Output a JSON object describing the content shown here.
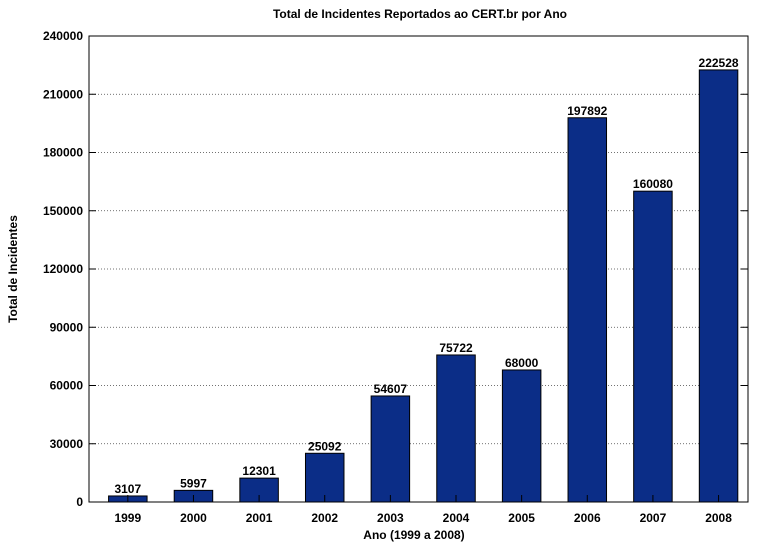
{
  "chart_data": {
    "type": "bar",
    "title": "Total de Incidentes Reportados ao CERT.br por Ano",
    "xlabel": "Ano (1999 a 2008)",
    "ylabel": "Total de Incidentes",
    "categories": [
      "1999",
      "2000",
      "2001",
      "2002",
      "2003",
      "2004",
      "2005",
      "2006",
      "2007",
      "2008"
    ],
    "values": [
      3107,
      5997,
      12301,
      25092,
      54607,
      75722,
      68000,
      197892,
      160080,
      222528
    ],
    "data_labels": [
      "3107",
      "5997",
      "12301",
      "25092",
      "54607",
      "75722",
      "68000",
      "197892",
      "160080",
      "222528"
    ],
    "ylim": [
      0,
      240000
    ],
    "yticks": [
      0,
      30000,
      60000,
      90000,
      120000,
      150000,
      180000,
      210000,
      240000
    ],
    "grid": "horizontal dotted",
    "bar_color": "#0b2d87",
    "legend": "none"
  }
}
